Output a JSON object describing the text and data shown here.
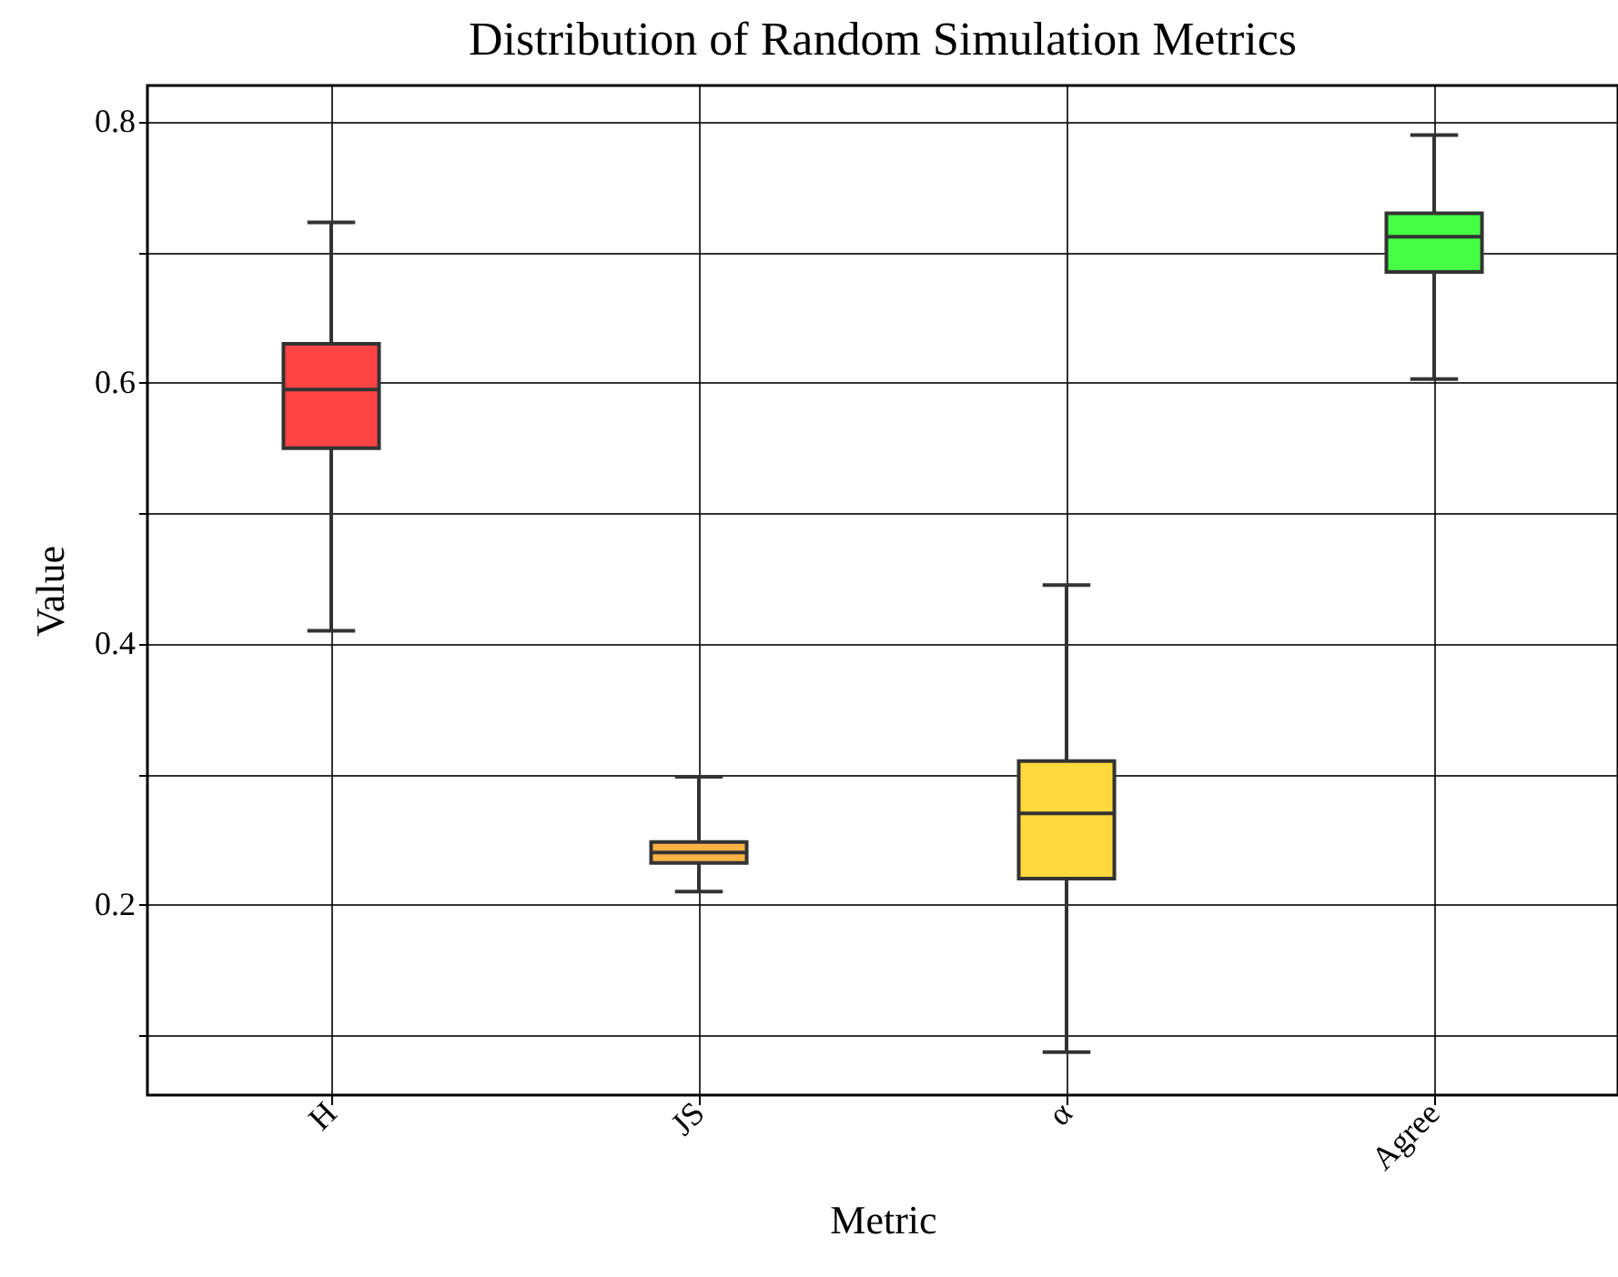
{
  "chart_data": {
    "type": "box",
    "title": "Distribution of Random Simulation Metrics",
    "xlabel": "Metric",
    "ylabel": "Value",
    "categories": [
      "H",
      "JS",
      "α",
      "Agree"
    ],
    "colors": [
      "#ff4444",
      "#ffb347",
      "#ffd93d",
      "#44ff44"
    ],
    "boxes": [
      {
        "low": 0.41,
        "q1": 0.55,
        "median": 0.595,
        "q3": 0.63,
        "high": 0.723
      },
      {
        "low": 0.21,
        "q1": 0.232,
        "median": 0.24,
        "q3": 0.248,
        "high": 0.298
      },
      {
        "low": 0.087,
        "q1": 0.22,
        "median": 0.27,
        "q3": 0.31,
        "high": 0.445
      },
      {
        "low": 0.603,
        "q1": 0.685,
        "median": 0.712,
        "q3": 0.73,
        "high": 0.79
      }
    ],
    "ylim": [
      0.054,
      0.828
    ],
    "yticks": [
      {
        "value": 0.1,
        "label": null
      },
      0.2,
      {
        "value": 0.3,
        "label": null
      },
      0.4,
      {
        "value": 0.5,
        "label": null
      },
      0.6,
      {
        "value": 0.7,
        "label": null
      },
      0.8
    ],
    "grid": true
  }
}
